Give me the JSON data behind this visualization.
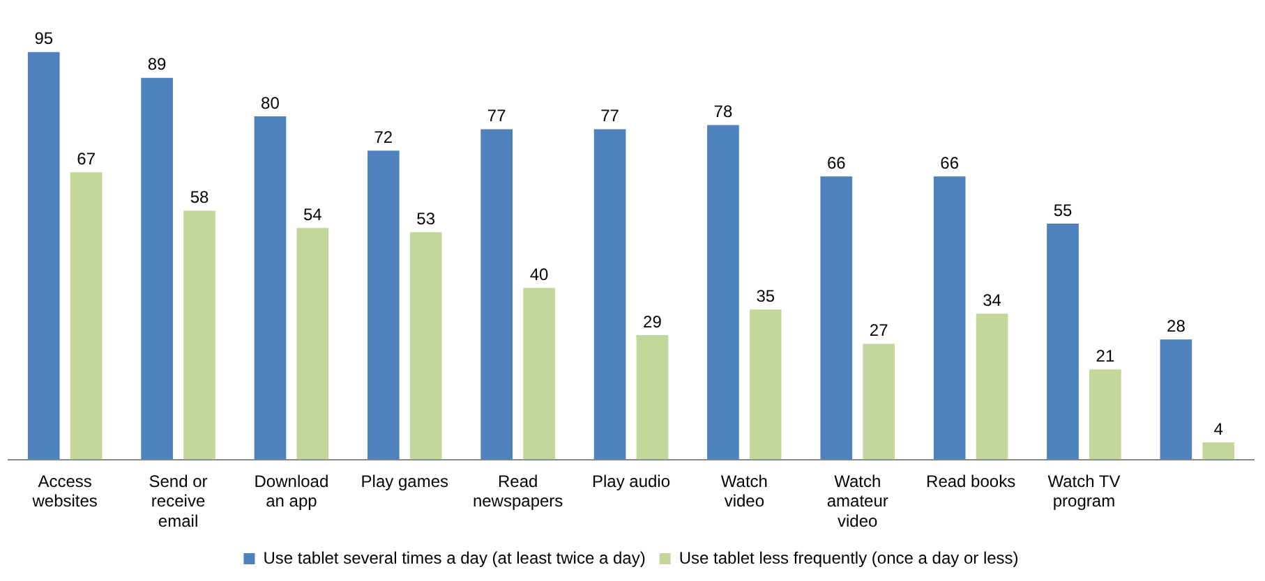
{
  "chart_data": {
    "type": "bar",
    "categories": [
      "Access websites",
      "Send or receive email",
      "Download an app",
      "Play games",
      "Read newspapers",
      "Play audio",
      "Watch video",
      "Watch amateur video",
      "Read books",
      "Watch TV program",
      null
    ],
    "series": [
      {
        "name": "Use tablet several times a day (at least twice a day)",
        "color": "#4f81bd",
        "values": [
          95,
          89,
          80,
          72,
          77,
          77,
          78,
          66,
          66,
          55,
          28
        ]
      },
      {
        "name": "Use tablet less frequently (once a day or less)",
        "color": "#c3d69b",
        "values": [
          67,
          58,
          54,
          53,
          40,
          29,
          35,
          27,
          34,
          21,
          4
        ]
      }
    ],
    "data_labels": true,
    "legend": "bottom",
    "grid": false,
    "tick_labels": "x"
  }
}
